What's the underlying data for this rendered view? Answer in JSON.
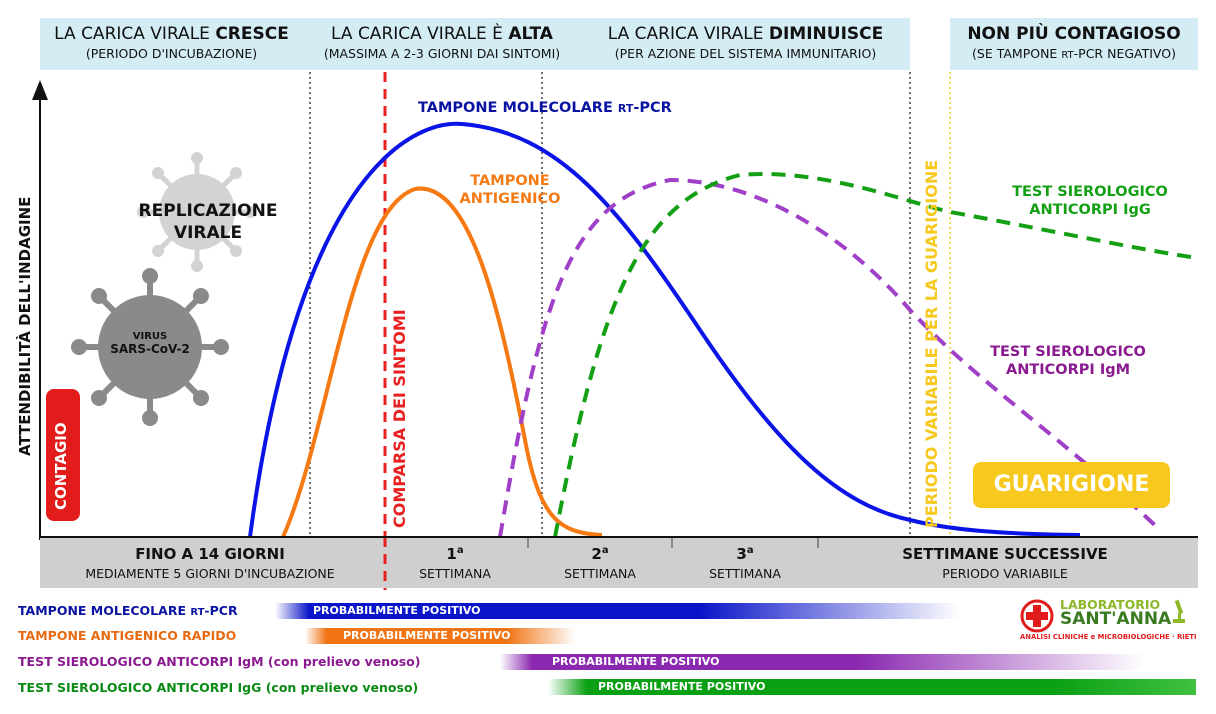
{
  "phases": [
    {
      "title_pre": "LA CARICA VIRALE ",
      "title_bold": "CRESCE",
      "subtitle": "(PERIODO D'INCUBAZIONE)"
    },
    {
      "title_pre": "LA CARICA VIRALE È ",
      "title_bold": "ALTA",
      "subtitle": "(MASSIMA A 2-3 GIORNI DAI SINTOMI)"
    },
    {
      "title_pre": "LA CARICA VIRALE ",
      "title_bold": "DIMINUISCE",
      "subtitle": "(PER AZIONE DEL SISTEMA IMMUNITARIO)"
    },
    {
      "title_pre": "",
      "title_bold": "NON PIÙ CONTAGIOSO",
      "subtitle_pre": "(SE TAMPONE ",
      "subtitle_sc": "RT",
      "subtitle_post": "-PCR NEGATIVO)"
    }
  ],
  "y_axis_label": "ATTENDIBILITÀ DELL'INDAGINE",
  "labels": {
    "replicazione_1": "REPLICAZIONE",
    "replicazione_2": "VIRALE",
    "virus_1": "VIRUS",
    "virus_2": "SARS-CoV-2",
    "contagio": "CONTAGIO",
    "comparsa": "COMPARSA DEI SINTOMI",
    "periodo_variabile": "PERIODO VARIABILE PER LA GUARIGIONE",
    "guarigione": "GUARIGIONE"
  },
  "curves": {
    "pcr_pre": "TAMPONE MOLECOLARE ",
    "pcr_sc": "RT",
    "pcr_post": "-PCR",
    "antigen_1": "TAMPONE",
    "antigen_2": "ANTIGENICO",
    "igg_1": "TEST SIEROLOGICO",
    "igg_2": "ANTICORPI IgG",
    "igm_1": "TEST SIEROLOGICO",
    "igm_2": "ANTICORPI IgM"
  },
  "timeline": [
    {
      "main": "FINO A 14 GIORNI",
      "sub": "MEDIAMENTE 5 GIORNI D'INCUBAZIONE"
    },
    {
      "main_num": "1",
      "main_sup": "a",
      "sub": "SETTIMANA"
    },
    {
      "main_num": "2",
      "main_sup": "a",
      "sub": "SETTIMANA"
    },
    {
      "main_num": "3",
      "main_sup": "a",
      "sub": "SETTIMANA"
    },
    {
      "main": "SETTIMANE SUCCESSIVE",
      "sub": "PERIODO VARIABILE"
    }
  ],
  "legend": [
    {
      "label_pre": "TAMPONE MOLECOLARE ",
      "label_sc": "RT",
      "label_post": "-PCR",
      "bar": "PROBABILMENTE POSITIVO",
      "color": "#0a14c8"
    },
    {
      "label": "TAMPONE ANTIGENICO RAPIDO",
      "bar": "PROBABILMENTE POSITIVO",
      "color": "#f07414"
    },
    {
      "label": "TEST SIEROLOGICO ANTICORPI IgM (con prelievo venoso)",
      "bar": "PROBABILMENTE POSITIVO",
      "color": "#8a28b0"
    },
    {
      "label": "TEST SIEROLOGICO ANTICORPI IgG (con prelievo venoso)",
      "bar": "PROBABILMENTE POSITIVO",
      "color": "#0aa014"
    }
  ],
  "logo": {
    "line1": "LABORATORIO",
    "line2": "SANT'ANNA",
    "line3": "ANALISI CLINICHE e MICROBIOLOGICHE · RIETI"
  },
  "colors": {
    "pcr": "#0a14e6",
    "antigen": "#f57a14",
    "igm": "#a040c8",
    "igg": "#14a014",
    "symptoms": "#e82020",
    "recovery": "#f7c81e",
    "header_bg": "#d4ecf4",
    "band_bg": "#cfcfcf"
  }
}
